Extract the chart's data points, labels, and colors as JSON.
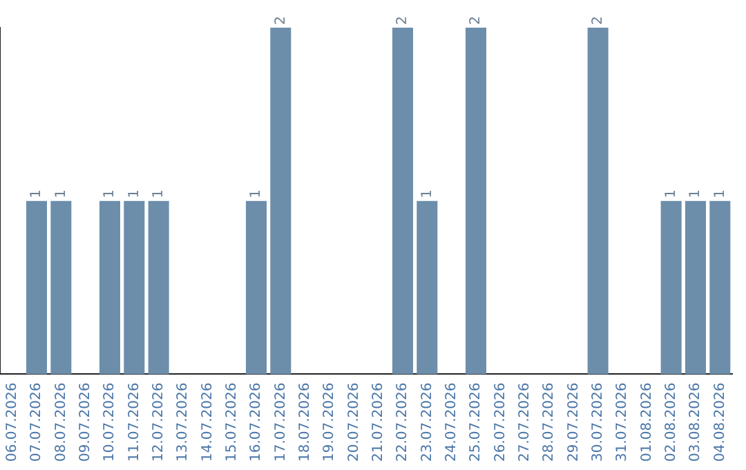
{
  "chart_data": {
    "type": "bar",
    "categories": [
      "06.07.2026",
      "07.07.2026",
      "08.07.2026",
      "09.07.2026",
      "10.07.2026",
      "11.07.2026",
      "12.07.2026",
      "13.07.2026",
      "14.07.2026",
      "15.07.2026",
      "16.07.2026",
      "17.07.2026",
      "18.07.2026",
      "19.07.2026",
      "20.07.2026",
      "21.07.2026",
      "22.07.2026",
      "23.07.2026",
      "24.07.2026",
      "25.07.2026",
      "26.07.2026",
      "27.07.2026",
      "28.07.2026",
      "29.07.2026",
      "30.07.2026",
      "31.07.2026",
      "01.08.2026",
      "02.08.2026",
      "03.08.2026",
      "04.08.2026"
    ],
    "values": [
      0,
      1,
      1,
      0,
      1,
      1,
      1,
      0,
      0,
      0,
      1,
      2,
      0,
      0,
      0,
      0,
      2,
      1,
      0,
      2,
      0,
      0,
      0,
      0,
      2,
      0,
      0,
      1,
      1,
      1
    ],
    "value_labels": [
      null,
      "1",
      "1",
      null,
      "1",
      "1",
      "1",
      null,
      null,
      null,
      "1",
      "2",
      null,
      null,
      null,
      null,
      "2",
      "1",
      null,
      "2",
      null,
      null,
      null,
      null,
      "2",
      null,
      null,
      "1",
      "1",
      "1"
    ],
    "color": "#6c8eab",
    "ylim": [
      0,
      2
    ],
    "tick_labels": "x",
    "grid": false,
    "legend": false
  }
}
